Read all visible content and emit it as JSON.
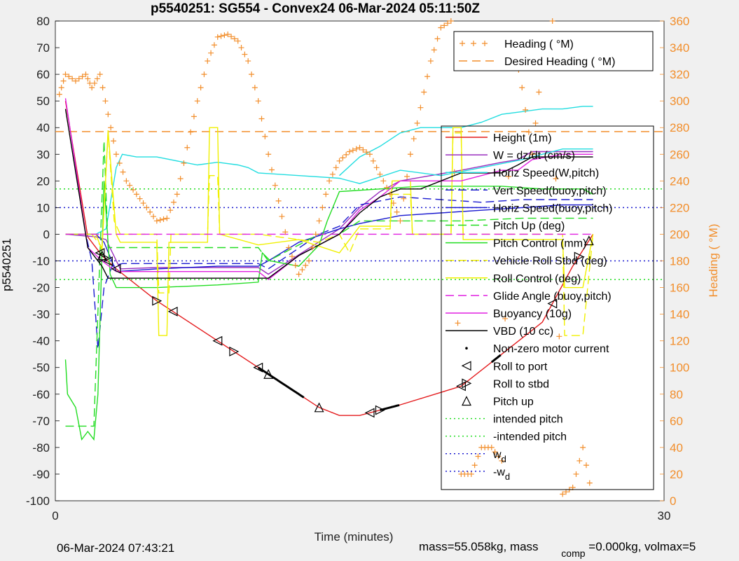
{
  "chart_data": {
    "type": "line",
    "title": "p5540251: SG554 - Convex24 06-Mar-2024 05:11:50Z",
    "xlabel": "Time (minutes)",
    "ylabel": "p5540251",
    "y2label": "Heading (  °M)",
    "xlim": [
      0,
      30
    ],
    "ylim": [
      -100,
      80
    ],
    "y2lim": [
      0,
      360
    ],
    "xticks": [
      "0",
      "30"
    ],
    "yticks": [
      "-100",
      "-90",
      "-80",
      "-70",
      "-60",
      "-50",
      "-40",
      "-30",
      "-20",
      "-10",
      "0",
      "10",
      "20",
      "30",
      "40",
      "50",
      "60",
      "70",
      "80"
    ],
    "y2ticks": [
      "0",
      "20",
      "40",
      "60",
      "80",
      "100",
      "120",
      "140",
      "160",
      "180",
      "200",
      "220",
      "240",
      "260",
      "280",
      "300",
      "320",
      "340",
      "360"
    ],
    "legend_top": [
      {
        "label": "Heading (  °M)",
        "color": "#f28e2b",
        "style": "plus"
      },
      {
        "label": "Desired Heading (    °M)",
        "color": "#f28e2b",
        "style": "dash"
      }
    ],
    "legend_main": [
      {
        "label": "Height (1m)",
        "color": "#e41a1c",
        "style": "solid"
      },
      {
        "label": "W = dz/dt (cm/s)",
        "color": "#9a2fbf",
        "style": "solid"
      },
      {
        "label": "Horiz Speed(W,pitch)",
        "color": "#22dde0",
        "style": "solid"
      },
      {
        "label": "Vert Speed(buoy,pitch)",
        "color": "#1a1ad0",
        "style": "dash"
      },
      {
        "label": "Horiz Speed(buoy,pitch)",
        "color": "#1a1ad0",
        "style": "solid"
      },
      {
        "label": "Pitch Up (deg)",
        "color": "#22dd22",
        "style": "dash"
      },
      {
        "label": "Pitch Control (mm)",
        "color": "#22dd22",
        "style": "solid"
      },
      {
        "label": "Vehicle Roll Stbd (deg)",
        "color": "#f0f000",
        "style": "dash"
      },
      {
        "label": "Roll Control (deg)",
        "color": "#f0f000",
        "style": "solid"
      },
      {
        "label": "Glide Angle (buoy,pitch)",
        "color": "#e020e0",
        "style": "dash"
      },
      {
        "label": "Buoyancy (10g)",
        "color": "#e020e0",
        "style": "solid"
      },
      {
        "label": "VBD (10 cc)",
        "color": "#000000",
        "style": "solid"
      },
      {
        "label": "Non-zero motor current",
        "color": "#000000",
        "style": "dot"
      },
      {
        "label": "Roll to port",
        "color": "#000000",
        "style": "tri-left"
      },
      {
        "label": "Roll to stbd",
        "color": "#000000",
        "style": "tri-right"
      },
      {
        "label": "Pitch up",
        "color": "#000000",
        "style": "tri-up"
      },
      {
        "label": "intended pitch",
        "color": "#22dd22",
        "style": "dotted"
      },
      {
        "label": "-intended pitch",
        "color": "#22dd22",
        "style": "dotted"
      },
      {
        "label": "w",
        "sub": "d",
        "color": "#1a1ad0",
        "style": "dotted"
      },
      {
        "label": "-w",
        "sub": "d",
        "color": "#1a1ad0",
        "style": "dotted"
      }
    ],
    "reference_lines": {
      "intended_pitch": 17,
      "w_d": 10,
      "desired_heading_deg": 277
    },
    "series": [
      {
        "name": "Height (1m)",
        "color": "#e41a1c",
        "style": "solid",
        "x": [
          0.5,
          1.6,
          2.3,
          3.0,
          5.0,
          10.0,
          12.0,
          13.0,
          14.0,
          15.0,
          17.0,
          20.0,
          22.0,
          24.0,
          25.5,
          26.5
        ],
        "y": [
          50,
          -1,
          -8,
          -13,
          -25,
          -50,
          -60,
          -65,
          -68,
          -68,
          -64,
          -57,
          -45,
          -33,
          -12,
          0
        ]
      },
      {
        "name": "W = dz/dt (cm/s)",
        "color": "#9a2fbf",
        "style": "solid",
        "x": [
          0.5,
          2.0,
          2.5,
          3.2,
          5.0,
          7.0,
          8.0,
          9.0,
          10.0,
          10.5,
          14.0,
          15.0,
          16.0,
          17.0,
          20.0,
          22.0,
          22.8,
          23.5,
          25.0,
          26.5
        ],
        "y": [
          0,
          -1,
          -2,
          -13,
          -12.5,
          -12.5,
          -12.5,
          -12.5,
          -12.5,
          -15,
          2,
          10,
          16,
          20,
          24,
          27,
          28,
          31,
          31,
          31
        ]
      },
      {
        "name": "Horiz Speed(W,pitch)",
        "color": "#22dde0",
        "style": "solid",
        "x": [
          0.5,
          2.0,
          2.5,
          3.0,
          3.3,
          4.0,
          5.0,
          7.0,
          8.0,
          9.0,
          9.5,
          10.0,
          12.0,
          14.0,
          15.0,
          17.0,
          19.0,
          21.0,
          23.0,
          25.0,
          26.5
        ],
        "y": [
          0,
          0,
          2,
          25,
          30,
          29,
          29,
          26,
          27,
          26,
          25,
          23,
          22,
          21,
          19,
          24,
          22,
          25,
          28,
          32,
          32
        ]
      },
      {
        "name": "Horiz Speed(W,pitch) upper",
        "color": "#22dde0",
        "style": "solid",
        "x": [
          14.0,
          15.0,
          16.0,
          17.0,
          18.0,
          19.0,
          20.0,
          21.0,
          22.0,
          23.0,
          24.0,
          25.0,
          26.0,
          26.5
        ],
        "y": [
          22,
          29,
          33,
          38,
          40,
          40,
          40,
          42,
          45,
          46,
          47,
          47,
          48,
          48
        ]
      },
      {
        "name": "Vert Speed(buoy,pitch)",
        "color": "#1a1ad0",
        "style": "dash",
        "x": [
          0.5,
          1.5,
          1.8,
          2.1,
          2.4,
          2.8,
          3.3,
          5.0,
          8.0,
          10.0,
          10.5,
          13.0,
          14.0,
          15.0,
          17.0,
          19.0,
          21.0,
          23.0,
          25.0,
          26.5
        ],
        "y": [
          0,
          0,
          -10,
          -43,
          -20,
          -12,
          -11,
          -11,
          -11,
          -11,
          -13,
          0,
          3,
          11,
          14,
          13,
          12,
          13,
          13,
          13
        ]
      },
      {
        "name": "Horiz Speed(buoy,pitch)",
        "color": "#1a1ad0",
        "style": "solid",
        "x": [
          0.5,
          2.0,
          2.4,
          3.0,
          5.0,
          8.0,
          10.0,
          10.5,
          12.0,
          14.0,
          15.0,
          17.0,
          19.0,
          21.0,
          23.0,
          25.0,
          26.5
        ],
        "y": [
          0,
          0,
          -3,
          -14,
          -13,
          -12,
          -12,
          -10,
          -3,
          2,
          4,
          7,
          8,
          9,
          10,
          11,
          11
        ]
      },
      {
        "name": "Pitch Up (deg)",
        "color": "#22dd22",
        "style": "dash",
        "x": [
          0.5,
          1.5,
          1.9,
          2.4,
          2.6,
          3.2,
          5.0,
          8.0,
          10.0,
          10.5,
          13.0,
          14.0,
          15.0,
          17.0,
          20.0,
          23.0,
          26.5
        ],
        "y": [
          -72,
          -72,
          -72,
          35,
          -5,
          -5,
          -5,
          -5,
          -5,
          -10,
          0,
          0,
          5,
          5,
          5,
          6,
          6
        ]
      },
      {
        "name": "Pitch Control (mm)",
        "color": "#22dd22",
        "style": "solid",
        "x": [
          0.5,
          0.6,
          1.0,
          1.3,
          1.6,
          1.9,
          2.1,
          2.4,
          2.7,
          3.0,
          5.0,
          8.0,
          10.0,
          10.2,
          10.6,
          12.0,
          13.0,
          13.4,
          14.0,
          16.0,
          18.0,
          20.0,
          22.0,
          24.0,
          26.0,
          26.5
        ],
        "y": [
          -47,
          -60,
          -65,
          -77,
          -74,
          -77,
          -60,
          20,
          -15,
          -20,
          -20,
          -19,
          -18,
          -7,
          -10,
          -12,
          -4,
          5,
          16,
          17,
          18,
          18,
          18,
          17,
          17,
          15
        ]
      },
      {
        "name": "Vehicle Roll Stbd (deg)",
        "color": "#f0f000",
        "style": "dash",
        "x": [
          0.5,
          1.8,
          2.3,
          2.6,
          2.9,
          3.2,
          5.0,
          5.1,
          5.6,
          5.7,
          7.5,
          7.6,
          8.0,
          8.1,
          10.0,
          12.0,
          13.0,
          14.0,
          14.5,
          15.0,
          16.5,
          16.6,
          17.5,
          17.6,
          19.5,
          19.6,
          20.0,
          20.1,
          25.0,
          25.1,
          26.0,
          26.5
        ],
        "y": [
          0,
          0,
          -5,
          38,
          5,
          0,
          0,
          -22,
          -22,
          0,
          0,
          22,
          22,
          0,
          0,
          -2,
          -3,
          0,
          -7,
          2,
          2,
          15,
          15,
          0,
          0,
          38,
          38,
          0,
          0,
          -38,
          -38,
          0
        ]
      },
      {
        "name": "Roll Control (deg)",
        "color": "#f0f000",
        "style": "solid",
        "x": [
          0.5,
          2.0,
          2.3,
          2.6,
          3.0,
          3.2,
          5.0,
          5.1,
          5.5,
          5.6,
          7.5,
          7.6,
          8.0,
          8.1,
          10.0,
          12.0,
          14.0,
          15.0,
          16.5,
          16.6,
          17.5,
          17.6,
          19.5,
          19.6,
          20.0,
          20.1,
          25.0,
          25.1,
          26.0,
          26.5
        ],
        "y": [
          0,
          0,
          -6,
          39,
          0,
          -3,
          -3,
          -38,
          -38,
          -3,
          -3,
          40,
          40,
          0,
          -4,
          -2,
          -7,
          3,
          3,
          20,
          20,
          0,
          0,
          40,
          40,
          -2,
          -2,
          -20,
          -20,
          0
        ]
      },
      {
        "name": "Glide Angle (buoy,pitch)",
        "color": "#e020e0",
        "style": "dash",
        "x": [
          0.5,
          3.0,
          5.0,
          10.0,
          15.0,
          20.0,
          25.0,
          26.5
        ],
        "y": [
          0,
          0,
          0,
          0,
          0,
          0,
          0,
          0
        ]
      },
      {
        "name": "Buoyancy (10g)",
        "color": "#e020e0",
        "style": "solid",
        "x": [
          0.5,
          1.6,
          2.3,
          3.0,
          5.0,
          8.0,
          10.0,
          10.5,
          12.0,
          14.0,
          15.0,
          16.0,
          17.0,
          20.0,
          22.0,
          22.8,
          23.5,
          25.0,
          26.5
        ],
        "y": [
          51,
          -5,
          -10,
          -14,
          -14,
          -14,
          -14,
          -17,
          -8,
          0,
          9,
          14,
          20,
          20,
          24,
          24,
          28,
          30,
          30
        ]
      },
      {
        "name": "VBD (10 cc)",
        "color": "#000000",
        "style": "solid",
        "x": [
          0.5,
          1.6,
          2.3,
          2.6,
          5.0,
          8.0,
          10.0,
          10.5,
          12.0,
          14.0,
          15.0,
          16.0,
          17.0,
          18.0,
          20.0,
          22.0,
          22.8,
          23.5,
          25.0,
          26.5
        ],
        "y": [
          47,
          -5,
          -12,
          -16.5,
          -16.5,
          -16.5,
          -16.5,
          -16.5,
          -8,
          0,
          8,
          14,
          17,
          17,
          23,
          23,
          26,
          29,
          29,
          29
        ]
      }
    ],
    "heading_series": {
      "name": "Heading (  °M)",
      "color": "#f28e2b",
      "style": "plus",
      "x": [
        0.2,
        0.5,
        1.0,
        1.5,
        1.8,
        2.2,
        2.6,
        3.0,
        3.5,
        4.0,
        4.5,
        5.0,
        5.5,
        6.0,
        6.5,
        7.0,
        7.5,
        8.0,
        8.5,
        9.0,
        9.5,
        10.0,
        10.5,
        11.0,
        11.5,
        12.0,
        12.5,
        13.0,
        13.5,
        14.0,
        14.5,
        15.0,
        15.5,
        16.0,
        16.5,
        17.0,
        17.5,
        18.0,
        18.5,
        19.0,
        19.5,
        20.0,
        20.5,
        21.0,
        21.5,
        22.0,
        22.5,
        23.0,
        23.5,
        24.0,
        24.5,
        25.0,
        25.5,
        26.0,
        26.5
      ],
      "y": [
        305,
        320,
        315,
        320,
        310,
        320,
        290,
        260,
        240,
        230,
        220,
        210,
        212,
        230,
        265,
        300,
        330,
        348,
        350,
        345,
        330,
        300,
        260,
        225,
        190,
        170,
        180,
        210,
        240,
        255,
        262,
        265,
        260,
        245,
        230,
        210,
        260,
        295,
        330,
        355,
        360,
        20,
        20,
        40,
        40,
        30,
        350,
        310,
        260,
        330,
        360,
        5,
        10,
        40,
        0
      ]
    }
  },
  "footer": {
    "left": "06-Mar-2024 07:43:21",
    "right_main": "mass=55.058kg, mass",
    "right_sub": "comp",
    "right_tail": "=0.000kg, volmax=5"
  }
}
